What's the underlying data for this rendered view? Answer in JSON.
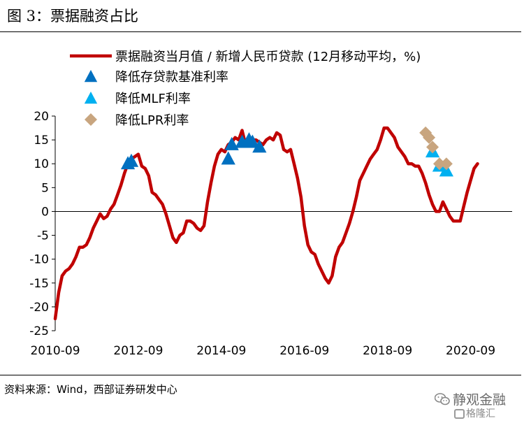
{
  "figure_title": "图 3：票据融资占比",
  "source_note": "资料来源：Wind，西部证券研发中心",
  "watermark": {
    "primary": "静观金融",
    "secondary": "格隆汇",
    "primary_icon": "wechat-icon",
    "secondary_icon": "gelonghui-logo-icon"
  },
  "colors": {
    "line": "#c00000",
    "triangle_dark": "#0070c0",
    "triangle_light": "#00b0f0",
    "diamond": "#c8a57f"
  },
  "chart_data": {
    "type": "line",
    "title": "",
    "xlabel": "",
    "ylabel": "",
    "ylim": [
      -25,
      20
    ],
    "yticks": [
      20,
      15,
      10,
      5,
      0,
      -5,
      -10,
      -15,
      -20,
      -25
    ],
    "xlim": [
      "2010-09",
      "2021-09"
    ],
    "xticks": [
      "2010-09",
      "2012-09",
      "2014-09",
      "2016-09",
      "2018-09",
      "2020-09"
    ],
    "grid": false,
    "legend_position": "top",
    "series": [
      {
        "name": "票据融资当月值 / 新增人民币贷款 (12月移动平均，%)",
        "kind": "line",
        "points": [
          [
            "2010-09",
            -22.5
          ],
          [
            "2010-10",
            -17
          ],
          [
            "2010-11",
            -13.5
          ],
          [
            "2010-12",
            -12.5
          ],
          [
            "2011-01",
            -12
          ],
          [
            "2011-02",
            -11
          ],
          [
            "2011-03",
            -9.5
          ],
          [
            "2011-04",
            -7.5
          ],
          [
            "2011-05",
            -7.5
          ],
          [
            "2011-06",
            -7
          ],
          [
            "2011-07",
            -5.5
          ],
          [
            "2011-08",
            -3.5
          ],
          [
            "2011-09",
            -2
          ],
          [
            "2011-10",
            -0.5
          ],
          [
            "2011-11",
            -1.5
          ],
          [
            "2011-12",
            -1
          ],
          [
            "2012-01",
            0.5
          ],
          [
            "2012-02",
            1.5
          ],
          [
            "2012-03",
            3.5
          ],
          [
            "2012-04",
            5.5
          ],
          [
            "2012-05",
            8
          ],
          [
            "2012-06",
            10
          ],
          [
            "2012-07",
            11
          ],
          [
            "2012-08",
            11.5
          ],
          [
            "2012-09",
            12
          ],
          [
            "2012-10",
            9.5
          ],
          [
            "2012-11",
            9
          ],
          [
            "2012-12",
            7.5
          ],
          [
            "2013-01",
            4
          ],
          [
            "2013-02",
            3.5
          ],
          [
            "2013-03",
            2.5
          ],
          [
            "2013-04",
            1.5
          ],
          [
            "2013-05",
            -0.5
          ],
          [
            "2013-06",
            -3
          ],
          [
            "2013-07",
            -5.5
          ],
          [
            "2013-08",
            -6.5
          ],
          [
            "2013-09",
            -5
          ],
          [
            "2013-10",
            -4.5
          ],
          [
            "2013-11",
            -2
          ],
          [
            "2013-12",
            -2
          ],
          [
            "2014-01",
            -2.5
          ],
          [
            "2014-02",
            -3.5
          ],
          [
            "2014-03",
            -4
          ],
          [
            "2014-04",
            -3
          ],
          [
            "2014-05",
            2
          ],
          [
            "2014-06",
            6
          ],
          [
            "2014-07",
            9.5
          ],
          [
            "2014-08",
            12
          ],
          [
            "2014-09",
            13
          ],
          [
            "2014-10",
            12.5
          ],
          [
            "2014-11",
            14
          ],
          [
            "2014-12",
            14.5
          ],
          [
            "2015-01",
            15.5
          ],
          [
            "2015-02",
            15
          ],
          [
            "2015-03",
            17
          ],
          [
            "2015-04",
            14
          ],
          [
            "2015-05",
            14.5
          ],
          [
            "2015-06",
            15
          ],
          [
            "2015-07",
            15
          ],
          [
            "2015-08",
            14.5
          ],
          [
            "2015-09",
            14
          ],
          [
            "2015-10",
            15
          ],
          [
            "2015-11",
            15.5
          ],
          [
            "2015-12",
            15
          ],
          [
            "2016-01",
            16.5
          ],
          [
            "2016-02",
            16
          ],
          [
            "2016-03",
            13
          ],
          [
            "2016-04",
            12.5
          ],
          [
            "2016-05",
            13
          ],
          [
            "2016-06",
            10
          ],
          [
            "2016-07",
            7
          ],
          [
            "2016-08",
            3
          ],
          [
            "2016-09",
            -3
          ],
          [
            "2016-10",
            -7
          ],
          [
            "2016-11",
            -8.5
          ],
          [
            "2016-12",
            -9
          ],
          [
            "2017-01",
            -11
          ],
          [
            "2017-02",
            -12.5
          ],
          [
            "2017-03",
            -14
          ],
          [
            "2017-04",
            -15
          ],
          [
            "2017-05",
            -13.5
          ],
          [
            "2017-06",
            -9.5
          ],
          [
            "2017-07",
            -7.5
          ],
          [
            "2017-08",
            -6.5
          ],
          [
            "2017-09",
            -4.5
          ],
          [
            "2017-10",
            -2.5
          ],
          [
            "2017-11",
            0
          ],
          [
            "2017-12",
            3
          ],
          [
            "2018-01",
            6.5
          ],
          [
            "2018-02",
            8
          ],
          [
            "2018-03",
            9.5
          ],
          [
            "2018-04",
            11
          ],
          [
            "2018-05",
            12
          ],
          [
            "2018-06",
            13
          ],
          [
            "2018-07",
            15
          ],
          [
            "2018-08",
            17.5
          ],
          [
            "2018-09",
            17.5
          ],
          [
            "2018-10",
            16.5
          ],
          [
            "2018-11",
            15.5
          ],
          [
            "2018-12",
            13.5
          ],
          [
            "2019-01",
            12.5
          ],
          [
            "2019-02",
            11.5
          ],
          [
            "2019-03",
            10
          ],
          [
            "2019-04",
            10
          ],
          [
            "2019-05",
            9.5
          ],
          [
            "2019-06",
            9.5
          ],
          [
            "2019-07",
            8
          ],
          [
            "2019-08",
            6
          ],
          [
            "2019-09",
            3.5
          ],
          [
            "2019-10",
            1.5
          ],
          [
            "2019-11",
            0
          ],
          [
            "2019-12",
            0
          ],
          [
            "2020-01",
            2
          ],
          [
            "2020-02",
            0.5
          ],
          [
            "2020-03",
            -1
          ],
          [
            "2020-04",
            -2
          ],
          [
            "2020-05",
            -2
          ],
          [
            "2020-06",
            -2
          ],
          [
            "2020-07",
            1
          ],
          [
            "2020-08",
            4
          ],
          [
            "2020-09",
            6.5
          ],
          [
            "2020-10",
            9
          ],
          [
            "2020-11",
            10
          ]
        ]
      },
      {
        "name": "降低存贷款基准利率",
        "kind": "triangle",
        "color_key": "triangle_dark",
        "points": [
          [
            "2012-06",
            10
          ],
          [
            "2012-07",
            10.5
          ],
          [
            "2014-11",
            11
          ],
          [
            "2014-12",
            14
          ],
          [
            "2015-03",
            14.5
          ],
          [
            "2015-05",
            15
          ],
          [
            "2015-06",
            14.5
          ],
          [
            "2015-08",
            13.5
          ]
        ]
      },
      {
        "name": "降低MLF利率",
        "kind": "triangle",
        "color_key": "triangle_light",
        "points": [
          [
            "2019-10",
            12.5
          ],
          [
            "2019-12",
            9.5
          ],
          [
            "2020-02",
            8.5
          ]
        ]
      },
      {
        "name": "降低LPR利率",
        "kind": "diamond",
        "color_key": "diamond",
        "points": [
          [
            "2019-08",
            16.5
          ],
          [
            "2019-09",
            15.5
          ],
          [
            "2019-10",
            13.5
          ],
          [
            "2019-12",
            10
          ],
          [
            "2020-02",
            10
          ]
        ]
      }
    ]
  }
}
